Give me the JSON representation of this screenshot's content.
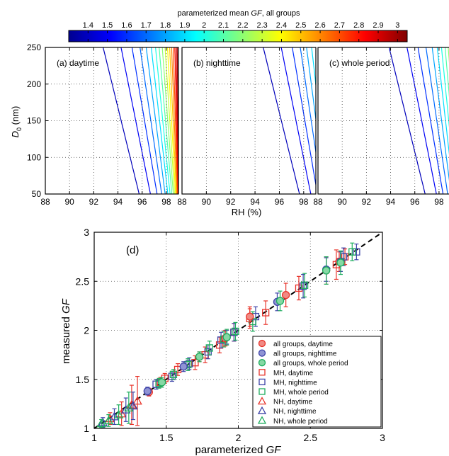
{
  "chart_data": [
    {
      "type": "contour",
      "title_prefix": "parameterized mean ",
      "title_italic": "GF",
      "title_suffix": ", all groups",
      "colorbar": {
        "min": 1.3,
        "max": 3.05,
        "ticks": [
          "1.4",
          "1.5",
          "1.6",
          "1.7",
          "1.8",
          "1.9",
          "2",
          "2.1",
          "2.2",
          "2.3",
          "2.4",
          "2.5",
          "2.6",
          "2.7",
          "2.8",
          "2.9",
          "3"
        ],
        "colormap": "jet"
      },
      "xlabel": "RH (%)",
      "ylabel_main": "D",
      "ylabel_sub": "0",
      "ylabel_unit": " (nm)",
      "xlim": [
        88,
        99
      ],
      "ylim": [
        50,
        250
      ],
      "xticks": [
        "88",
        "90",
        "92",
        "94",
        "96",
        "98"
      ],
      "yticks": [
        "50",
        "100",
        "150",
        "200",
        "250"
      ],
      "grid": true,
      "panels": [
        {
          "label": "(a) daytime",
          "shift": 0.0
        },
        {
          "label": "(b) nighttime",
          "shift": 1.9
        },
        {
          "label": "(c) whole period",
          "shift": 1.1
        }
      ],
      "contour_levels": [
        1.4,
        1.5,
        1.6,
        1.7,
        1.8,
        1.9,
        2.0,
        2.1,
        2.2,
        2.3,
        2.4,
        2.5,
        2.6,
        2.7,
        2.8,
        2.9,
        3.0
      ]
    },
    {
      "type": "scatter",
      "panel_label": "(d)",
      "xlabel_prefix": "parameterized ",
      "xlabel_italic": "GF",
      "ylabel_prefix": "measured ",
      "ylabel_italic": "GF",
      "xlim": [
        1,
        3
      ],
      "ylim": [
        1,
        3
      ],
      "xticks": [
        "1",
        "1.5",
        "2",
        "2.5",
        "3"
      ],
      "yticks": [
        "1",
        "1.5",
        "2",
        "2.5",
        "3"
      ],
      "grid": true,
      "legend_position": "bottom-right",
      "colors": {
        "daytime": "#e8332a",
        "nighttime": "#3e44a8",
        "whole": "#1fae5f"
      },
      "series": [
        {
          "name": "all groups, daytime",
          "marker": "circle",
          "period": "daytime",
          "filled": true,
          "points": [
            [
              1.38,
              1.37,
              0.04
            ],
            [
              1.73,
              1.73,
              0.05
            ],
            [
              1.91,
              1.92,
              0.08
            ],
            [
              2.08,
              2.14,
              0.1
            ],
            [
              2.33,
              2.36,
              0.12
            ],
            [
              2.61,
              2.61,
              0.14
            ],
            [
              2.7,
              2.7,
              0.1
            ]
          ]
        },
        {
          "name": "all groups, nighttime",
          "marker": "circle",
          "period": "nighttime",
          "filled": true,
          "points": [
            [
              1.37,
              1.38,
              0.04
            ],
            [
              1.62,
              1.63,
              0.05
            ],
            [
              1.92,
              1.93,
              0.07
            ],
            [
              2.27,
              2.29,
              0.09
            ],
            [
              2.61,
              2.62,
              0.12
            ],
            [
              2.71,
              2.7,
              0.1
            ]
          ]
        },
        {
          "name": "all groups, whole period",
          "marker": "circle",
          "period": "whole",
          "filled": true,
          "points": [
            [
              1.47,
              1.47,
              0.05
            ],
            [
              1.73,
              1.73,
              0.05
            ],
            [
              1.92,
              1.93,
              0.08
            ],
            [
              2.29,
              2.3,
              0.1
            ],
            [
              2.61,
              2.61,
              0.14
            ],
            [
              2.71,
              2.69,
              0.12
            ]
          ]
        },
        {
          "name": "MH, daytime",
          "marker": "square",
          "period": "daytime",
          "filled": false,
          "points": [
            [
              1.46,
              1.47,
              0.05
            ],
            [
              1.49,
              1.51,
              0.05
            ],
            [
              1.58,
              1.6,
              0.06
            ],
            [
              1.7,
              1.67,
              0.07
            ],
            [
              1.77,
              1.75,
              0.08
            ],
            [
              1.87,
              1.85,
              0.08
            ],
            [
              1.97,
              1.98,
              0.09
            ],
            [
              2.08,
              2.12,
              0.1
            ],
            [
              2.19,
              2.18,
              0.12
            ],
            [
              2.42,
              2.43,
              0.12
            ],
            [
              2.68,
              2.67,
              0.15
            ],
            [
              2.74,
              2.75,
              0.08
            ]
          ]
        },
        {
          "name": "MH, nighttime",
          "marker": "square",
          "period": "nighttime",
          "filled": false,
          "points": [
            [
              1.43,
              1.45,
              0.05
            ],
            [
              1.54,
              1.53,
              0.05
            ],
            [
              1.66,
              1.66,
              0.06
            ],
            [
              1.79,
              1.78,
              0.07
            ],
            [
              1.88,
              1.9,
              0.08
            ],
            [
              1.97,
              1.98,
              0.09
            ],
            [
              2.12,
              2.14,
              0.1
            ],
            [
              2.45,
              2.45,
              0.12
            ],
            [
              2.73,
              2.75,
              0.09
            ],
            [
              2.82,
              2.8,
              0.08
            ]
          ]
        },
        {
          "name": "MH, whole period",
          "marker": "square",
          "period": "whole",
          "filled": false,
          "points": [
            [
              1.45,
              1.46,
              0.05
            ],
            [
              1.55,
              1.55,
              0.05
            ],
            [
              1.65,
              1.65,
              0.06
            ],
            [
              1.8,
              1.82,
              0.07
            ],
            [
              1.9,
              1.91,
              0.08
            ],
            [
              1.98,
              1.99,
              0.09
            ],
            [
              2.1,
              2.09,
              0.1
            ],
            [
              2.46,
              2.46,
              0.12
            ],
            [
              2.71,
              2.7,
              0.1
            ],
            [
              2.79,
              2.8,
              0.09
            ]
          ]
        },
        {
          "name": "NH, daytime",
          "marker": "triangle",
          "period": "daytime",
          "filled": false,
          "points": [
            [
              1.11,
              1.1,
              0.06
            ],
            [
              1.19,
              1.15,
              0.12
            ],
            [
              1.26,
              1.24,
              0.2
            ],
            [
              1.3,
              1.28,
              0.25
            ]
          ]
        },
        {
          "name": "NH, nighttime",
          "marker": "triangle",
          "period": "nighttime",
          "filled": false,
          "points": [
            [
              1.06,
              1.06,
              0.05
            ],
            [
              1.14,
              1.12,
              0.08
            ],
            [
              1.22,
              1.19,
              0.12
            ],
            [
              1.27,
              1.23,
              0.14
            ]
          ]
        },
        {
          "name": "NH, whole period",
          "marker": "triangle",
          "period": "whole",
          "filled": false,
          "points": [
            [
              1.05,
              1.05,
              0.04
            ],
            [
              1.1,
              1.08,
              0.06
            ],
            [
              1.17,
              1.14,
              0.1
            ],
            [
              1.24,
              1.21,
              0.16
            ]
          ]
        }
      ]
    }
  ]
}
